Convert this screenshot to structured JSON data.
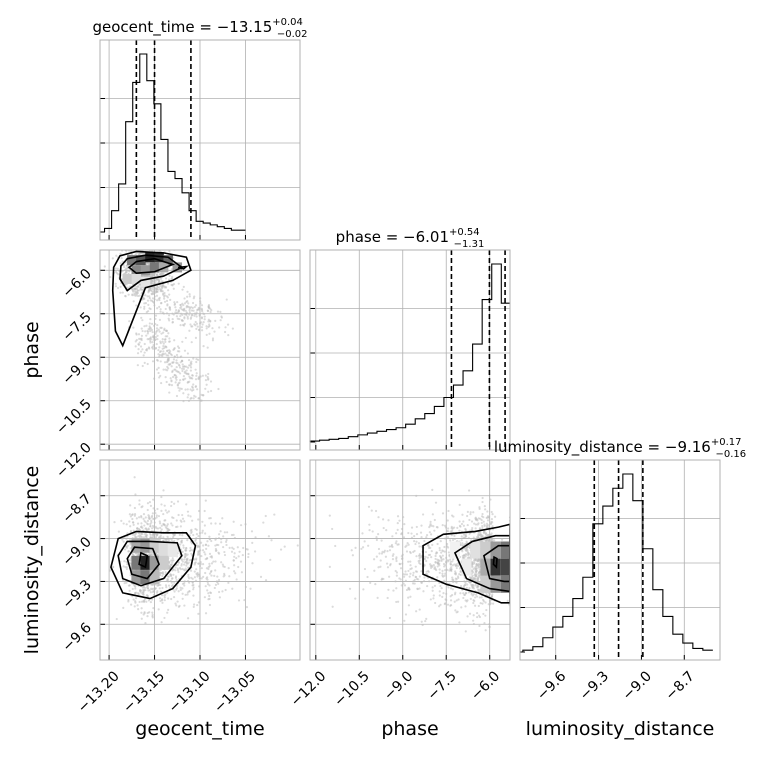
{
  "chart_data": {
    "type": "corner",
    "parameters": [
      "geocent_time",
      "phase",
      "luminosity_distance"
    ],
    "titles": {
      "geocent_time": {
        "prefix": "geocent_time = −13.15",
        "plus": "+0.04",
        "minus": "−0.02"
      },
      "phase": {
        "prefix": "phase = −6.01",
        "plus": "+0.54",
        "minus": "−1.31"
      },
      "luminosity_distance": {
        "prefix": "luminosity_distance = −9.16",
        "plus": "+0.17",
        "minus": "−0.16"
      }
    },
    "axis_ranges": {
      "geocent_time": [
        -13.21,
        -12.99
      ],
      "phase": [
        -12.2,
        -5.3
      ],
      "luminosity_distance": [
        -9.85,
        -8.45
      ]
    },
    "ticks": {
      "geocent_time": {
        "values": [
          -13.2,
          -13.15,
          -13.1,
          -13.05
        ],
        "labels": [
          "−13.20",
          "−13.15",
          "−13.10",
          "−13.05"
        ]
      },
      "phase": {
        "values": [
          -12.0,
          -10.5,
          -9.0,
          -7.5,
          -6.0
        ],
        "labels": [
          "−12.0",
          "−10.5",
          "−9.0",
          "−7.5",
          "−6.0"
        ]
      },
      "luminosity_distance": {
        "values": [
          -9.6,
          -9.3,
          -9.0,
          -8.7
        ],
        "labels": [
          "−9.6",
          "−9.3",
          "−9.0",
          "−8.7"
        ]
      }
    },
    "quantiles": {
      "geocent_time": [
        -13.17,
        -13.15,
        -13.11
      ],
      "phase": [
        -7.32,
        -6.01,
        -5.47
      ],
      "luminosity_distance": [
        -9.33,
        -9.16,
        -8.99
      ]
    },
    "histograms": {
      "geocent_time": {
        "edges_start": -13.205,
        "bin_width": 0.00775,
        "counts": [
          0.02,
          0.12,
          0.27,
          0.62,
          0.84,
          1.0,
          0.85,
          0.72,
          0.52,
          0.34,
          0.3,
          0.22,
          0.12,
          0.06,
          0.05,
          0.04,
          0.03,
          0.02,
          0.01,
          0.01
        ]
      },
      "phase": {
        "edges_start": -12.2,
        "bin_width": 0.33,
        "counts": [
          0.005,
          0.01,
          0.015,
          0.02,
          0.03,
          0.04,
          0.05,
          0.06,
          0.07,
          0.08,
          0.1,
          0.13,
          0.16,
          0.2,
          0.25,
          0.32,
          0.4,
          0.55,
          0.8,
          1.0,
          0.78
        ]
      },
      "luminosity_distance": {
        "edges_start": -9.83,
        "bin_width": 0.07,
        "counts": [
          0.01,
          0.03,
          0.08,
          0.14,
          0.2,
          0.3,
          0.42,
          0.72,
          0.82,
          0.92,
          1.0,
          0.85,
          0.58,
          0.35,
          0.2,
          0.1,
          0.05,
          0.02,
          0.01
        ]
      }
    },
    "xlabel_bottom": [
      "geocent_time",
      "phase",
      "luminosity_distance"
    ],
    "ylabel_left": [
      "phase",
      "luminosity_distance"
    ],
    "grid": true,
    "colors": {
      "hist": "#000000",
      "scatter": "#bdbdbd",
      "density": "#4d4d4d"
    }
  }
}
